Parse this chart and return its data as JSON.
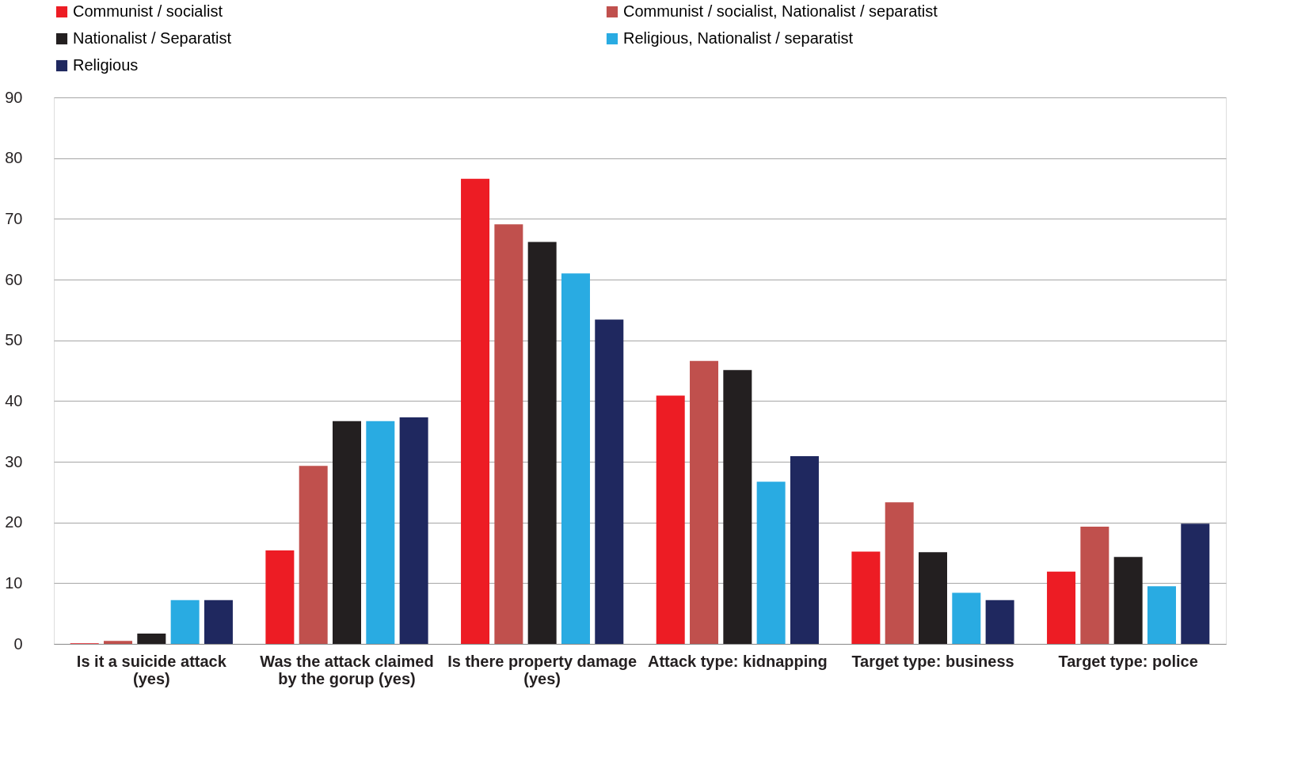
{
  "chart_data": {
    "type": "bar",
    "categories": [
      "Is it a suicide attack (yes)",
      "Was the attack claimed by the gorup (yes)",
      "Is there property damage (yes)",
      "Attack type: kidnapping",
      "Target type: business",
      "Target type: police"
    ],
    "series": [
      {
        "name": "Communist / socialist",
        "color": "#ed1c24",
        "values": [
          0.1,
          15.4,
          76.6,
          40.9,
          15.2,
          11.9
        ]
      },
      {
        "name": "Communist / socialist, Nationalist / separatist",
        "color": "#c0504d",
        "values": [
          0.5,
          29.3,
          69.1,
          46.6,
          23.3,
          19.3
        ]
      },
      {
        "name": "Nationalist / Separatist",
        "color": "#231f20",
        "values": [
          1.7,
          36.7,
          66.2,
          45.1,
          15.1,
          14.3
        ]
      },
      {
        "name": "Religious, Nationalist / separatist",
        "color": "#29abe2",
        "values": [
          7.2,
          36.7,
          61.0,
          26.7,
          8.4,
          9.5
        ]
      },
      {
        "name": "Religious",
        "color": "#1f285f",
        "values": [
          7.2,
          37.3,
          53.4,
          30.9,
          7.2,
          19.8
        ]
      }
    ],
    "ylim": [
      0,
      90
    ],
    "yticks": [
      0,
      10,
      20,
      30,
      40,
      50,
      60,
      70,
      80,
      90
    ],
    "grid": "y",
    "legend": "top left"
  }
}
